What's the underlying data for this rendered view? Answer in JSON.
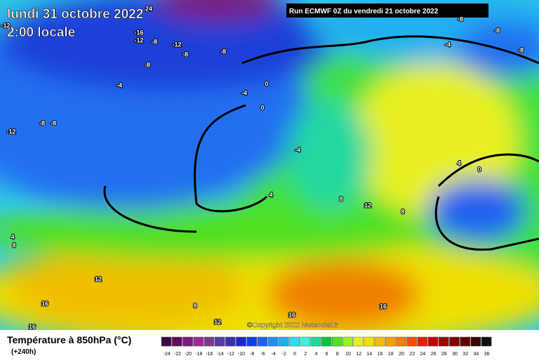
{
  "header": {
    "date": "lundi 31 octobre 2022",
    "time": "2:00 locale",
    "run": "Run ECMWF 0Z du vendredi 21 octobre 2022"
  },
  "copyright": "©Copyright 2022 Meteociel.fr",
  "legend": {
    "title": "Température à 850hPa (°C)",
    "lead": "(+240h)",
    "ticks": [
      -24,
      -22,
      -20,
      -18,
      -16,
      -14,
      -12,
      -10,
      -8,
      -6,
      -4,
      -2,
      0,
      2,
      4,
      6,
      8,
      10,
      12,
      14,
      16,
      18,
      20,
      22,
      24,
      26,
      28,
      30,
      32,
      34,
      36
    ],
    "colors": [
      "#3d0a3d",
      "#5a0f5a",
      "#7a1a7a",
      "#9a2a9a",
      "#7a3a92",
      "#5a3aa0",
      "#3a30b0",
      "#1a28c8",
      "#1040e0",
      "#2060f0",
      "#2090f0",
      "#20b0f0",
      "#30d8f0",
      "#40f0d8",
      "#20d8a0",
      "#10c040",
      "#50e020",
      "#a0f020",
      "#e0f020",
      "#f0e000",
      "#f0c000",
      "#f0a000",
      "#f08000",
      "#f05000",
      "#e02000",
      "#c00000",
      "#a00000",
      "#800000",
      "#600000",
      "#400000",
      "#101010"
    ]
  },
  "map_labels": [
    24,
    -12,
    -16,
    -12,
    -8,
    -12,
    -8,
    -8,
    -8,
    -4,
    -4,
    0,
    0,
    -12,
    -8,
    -8,
    -4,
    4,
    8,
    12,
    8,
    4,
    0,
    4,
    8,
    12,
    16,
    8,
    16,
    16,
    12,
    16,
    -4,
    -8,
    -8,
    -8
  ]
}
